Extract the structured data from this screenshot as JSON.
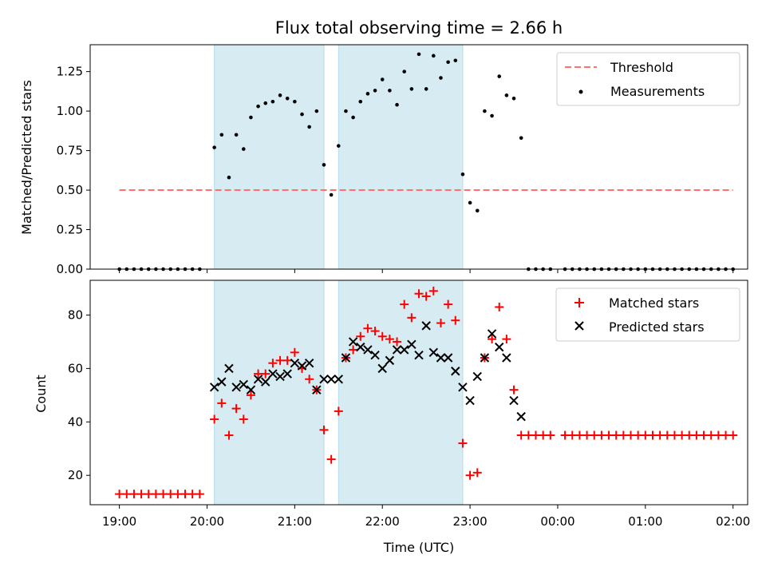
{
  "chart_data": [
    {
      "type": "scatter",
      "title": "Flux total observing time = 2.66 h",
      "xlabel": "",
      "ylabel": "Matched/Predicted stars",
      "ylim": [
        0.0,
        1.42
      ],
      "xlim": [
        "18:40",
        "02:10"
      ],
      "yticks": [
        "0.00",
        "0.25",
        "0.50",
        "0.75",
        "1.00",
        "1.25"
      ],
      "grid": false,
      "legend_position": "top-right",
      "shaded_intervals": [
        [
          "20:05",
          "21:20"
        ],
        [
          "21:30",
          "22:55"
        ]
      ],
      "shade_color": "#add8e6",
      "threshold": {
        "name": "Threshold",
        "value": 0.5,
        "x_range": [
          "19:00",
          "02:00"
        ],
        "color": "#ff7070"
      },
      "series": [
        {
          "name": "Measurements",
          "color": "#000000",
          "marker": "dot",
          "points": [
            [
              "19:00",
              0
            ],
            [
              "19:05",
              0
            ],
            [
              "19:10",
              0
            ],
            [
              "19:15",
              0
            ],
            [
              "19:20",
              0
            ],
            [
              "19:25",
              0
            ],
            [
              "19:30",
              0
            ],
            [
              "19:35",
              0
            ],
            [
              "19:40",
              0
            ],
            [
              "19:45",
              0
            ],
            [
              "19:50",
              0
            ],
            [
              "19:55",
              0
            ],
            [
              "20:05",
              0.77
            ],
            [
              "20:10",
              0.85
            ],
            [
              "20:15",
              0.58
            ],
            [
              "20:20",
              0.85
            ],
            [
              "20:25",
              0.76
            ],
            [
              "20:30",
              0.96
            ],
            [
              "20:35",
              1.03
            ],
            [
              "20:40",
              1.05
            ],
            [
              "20:45",
              1.06
            ],
            [
              "20:50",
              1.1
            ],
            [
              "20:55",
              1.08
            ],
            [
              "21:00",
              1.06
            ],
            [
              "21:05",
              0.98
            ],
            [
              "21:10",
              0.9
            ],
            [
              "21:15",
              1.0
            ],
            [
              "21:20",
              0.66
            ],
            [
              "21:25",
              0.47
            ],
            [
              "21:30",
              0.78
            ],
            [
              "21:35",
              1.0
            ],
            [
              "21:40",
              0.96
            ],
            [
              "21:45",
              1.06
            ],
            [
              "21:50",
              1.11
            ],
            [
              "21:55",
              1.13
            ],
            [
              "22:00",
              1.2
            ],
            [
              "22:05",
              1.13
            ],
            [
              "22:10",
              1.04
            ],
            [
              "22:15",
              1.25
            ],
            [
              "22:20",
              1.14
            ],
            [
              "22:25",
              1.36
            ],
            [
              "22:30",
              1.14
            ],
            [
              "22:35",
              1.35
            ],
            [
              "22:40",
              1.21
            ],
            [
              "22:45",
              1.31
            ],
            [
              "22:50",
              1.32
            ],
            [
              "22:55",
              0.6
            ],
            [
              "23:00",
              0.42
            ],
            [
              "23:05",
              0.37
            ],
            [
              "23:10",
              1.0
            ],
            [
              "23:15",
              0.97
            ],
            [
              "23:20",
              1.22
            ],
            [
              "23:25",
              1.1
            ],
            [
              "23:30",
              1.08
            ],
            [
              "23:35",
              0.83
            ],
            [
              "23:40",
              0
            ],
            [
              "23:45",
              0
            ],
            [
              "23:50",
              0
            ],
            [
              "23:55",
              0
            ],
            [
              "00:05",
              0
            ],
            [
              "00:10",
              0
            ],
            [
              "00:15",
              0
            ],
            [
              "00:20",
              0
            ],
            [
              "00:25",
              0
            ],
            [
              "00:30",
              0
            ],
            [
              "00:35",
              0
            ],
            [
              "00:40",
              0
            ],
            [
              "00:45",
              0
            ],
            [
              "00:50",
              0
            ],
            [
              "00:55",
              0
            ],
            [
              "01:00",
              0
            ],
            [
              "01:05",
              0
            ],
            [
              "01:10",
              0
            ],
            [
              "01:15",
              0
            ],
            [
              "01:20",
              0
            ],
            [
              "01:25",
              0
            ],
            [
              "01:30",
              0
            ],
            [
              "01:35",
              0
            ],
            [
              "01:40",
              0
            ],
            [
              "01:45",
              0
            ],
            [
              "01:50",
              0
            ],
            [
              "01:55",
              0
            ],
            [
              "02:00",
              0
            ]
          ]
        }
      ]
    },
    {
      "type": "scatter",
      "title": "",
      "xlabel": "Time (UTC)",
      "ylabel": "Count",
      "ylim": [
        9,
        93
      ],
      "xlim": [
        "18:40",
        "02:10"
      ],
      "xticks": [
        "19:00",
        "20:00",
        "21:00",
        "22:00",
        "23:00",
        "00:00",
        "01:00",
        "02:00"
      ],
      "yticks": [
        "20",
        "40",
        "60",
        "80"
      ],
      "grid": false,
      "legend_position": "top-right",
      "shaded_intervals": [
        [
          "20:05",
          "21:20"
        ],
        [
          "21:30",
          "22:55"
        ]
      ],
      "shade_color": "#add8e6",
      "series": [
        {
          "name": "Matched stars",
          "color": "#ff0000",
          "marker": "plus",
          "points": [
            [
              "19:00",
              13
            ],
            [
              "19:05",
              13
            ],
            [
              "19:10",
              13
            ],
            [
              "19:15",
              13
            ],
            [
              "19:20",
              13
            ],
            [
              "19:25",
              13
            ],
            [
              "19:30",
              13
            ],
            [
              "19:35",
              13
            ],
            [
              "19:40",
              13
            ],
            [
              "19:45",
              13
            ],
            [
              "19:50",
              13
            ],
            [
              "19:55",
              13
            ],
            [
              "20:05",
              41
            ],
            [
              "20:10",
              47
            ],
            [
              "20:15",
              35
            ],
            [
              "20:20",
              45
            ],
            [
              "20:25",
              41
            ],
            [
              "20:30",
              50
            ],
            [
              "20:35",
              58
            ],
            [
              "20:40",
              58
            ],
            [
              "20:45",
              62
            ],
            [
              "20:50",
              63
            ],
            [
              "20:55",
              63
            ],
            [
              "21:00",
              66
            ],
            [
              "21:05",
              60
            ],
            [
              "21:10",
              56
            ],
            [
              "21:15",
              52
            ],
            [
              "21:20",
              37
            ],
            [
              "21:25",
              26
            ],
            [
              "21:30",
              44
            ],
            [
              "21:35",
              64
            ],
            [
              "21:40",
              67
            ],
            [
              "21:45",
              72
            ],
            [
              "21:50",
              75
            ],
            [
              "21:55",
              74
            ],
            [
              "22:00",
              72
            ],
            [
              "22:05",
              71
            ],
            [
              "22:10",
              70
            ],
            [
              "22:15",
              84
            ],
            [
              "22:20",
              79
            ],
            [
              "22:25",
              88
            ],
            [
              "22:30",
              87
            ],
            [
              "22:35",
              89
            ],
            [
              "22:40",
              77
            ],
            [
              "22:45",
              84
            ],
            [
              "22:50",
              78
            ],
            [
              "22:55",
              32
            ],
            [
              "23:00",
              20
            ],
            [
              "23:05",
              21
            ],
            [
              "23:10",
              64
            ],
            [
              "23:15",
              71
            ],
            [
              "23:20",
              83
            ],
            [
              "23:25",
              71
            ],
            [
              "23:30",
              52
            ],
            [
              "23:35",
              35
            ],
            [
              "23:40",
              35
            ],
            [
              "23:45",
              35
            ],
            [
              "23:50",
              35
            ],
            [
              "23:55",
              35
            ],
            [
              "00:05",
              35
            ],
            [
              "00:10",
              35
            ],
            [
              "00:15",
              35
            ],
            [
              "00:20",
              35
            ],
            [
              "00:25",
              35
            ],
            [
              "00:30",
              35
            ],
            [
              "00:35",
              35
            ],
            [
              "00:40",
              35
            ],
            [
              "00:45",
              35
            ],
            [
              "00:50",
              35
            ],
            [
              "00:55",
              35
            ],
            [
              "01:00",
              35
            ],
            [
              "01:05",
              35
            ],
            [
              "01:10",
              35
            ],
            [
              "01:15",
              35
            ],
            [
              "01:20",
              35
            ],
            [
              "01:25",
              35
            ],
            [
              "01:30",
              35
            ],
            [
              "01:35",
              35
            ],
            [
              "01:40",
              35
            ],
            [
              "01:45",
              35
            ],
            [
              "01:50",
              35
            ],
            [
              "01:55",
              35
            ],
            [
              "02:00",
              35
            ]
          ]
        },
        {
          "name": "Predicted stars",
          "color": "#000000",
          "marker": "x",
          "points": [
            [
              "20:05",
              53
            ],
            [
              "20:10",
              55
            ],
            [
              "20:15",
              60
            ],
            [
              "20:20",
              53
            ],
            [
              "20:25",
              54
            ],
            [
              "20:30",
              52
            ],
            [
              "20:35",
              56
            ],
            [
              "20:40",
              55
            ],
            [
              "20:45",
              58
            ],
            [
              "20:50",
              57
            ],
            [
              "20:55",
              58
            ],
            [
              "21:00",
              62
            ],
            [
              "21:05",
              61
            ],
            [
              "21:10",
              62
            ],
            [
              "21:15",
              52
            ],
            [
              "21:20",
              56
            ],
            [
              "21:25",
              56
            ],
            [
              "21:30",
              56
            ],
            [
              "21:35",
              64
            ],
            [
              "21:40",
              70
            ],
            [
              "21:45",
              68
            ],
            [
              "21:50",
              67
            ],
            [
              "21:55",
              65
            ],
            [
              "22:00",
              60
            ],
            [
              "22:05",
              63
            ],
            [
              "22:10",
              67
            ],
            [
              "22:15",
              67
            ],
            [
              "22:20",
              69
            ],
            [
              "22:25",
              65
            ],
            [
              "22:30",
              76
            ],
            [
              "22:35",
              66
            ],
            [
              "22:40",
              64
            ],
            [
              "22:45",
              64
            ],
            [
              "22:50",
              59
            ],
            [
              "22:55",
              53
            ],
            [
              "23:00",
              48
            ],
            [
              "23:05",
              57
            ],
            [
              "23:10",
              64
            ],
            [
              "23:15",
              73
            ],
            [
              "23:20",
              68
            ],
            [
              "23:25",
              64
            ],
            [
              "23:30",
              48
            ],
            [
              "23:35",
              42
            ]
          ]
        }
      ]
    }
  ]
}
